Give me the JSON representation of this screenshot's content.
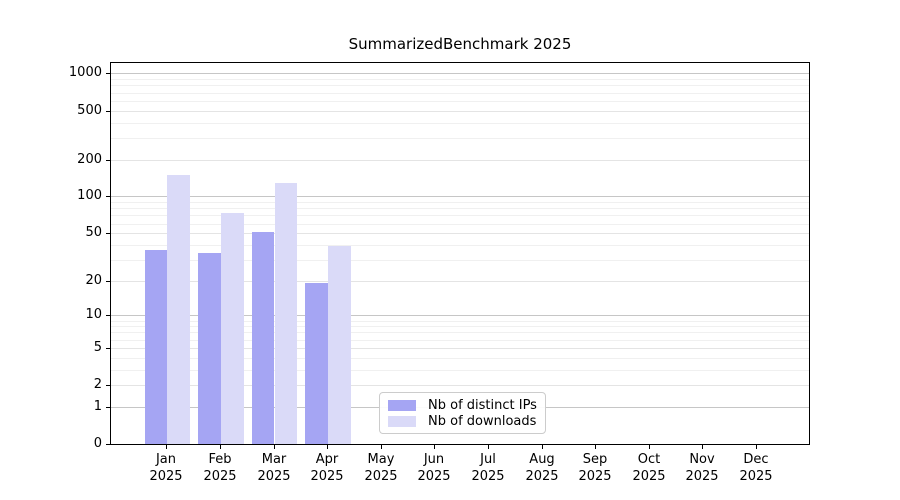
{
  "chart_data": {
    "type": "bar",
    "title": "SummarizedBenchmark 2025",
    "year": "2025",
    "categories": [
      "Jan",
      "Feb",
      "Mar",
      "Apr",
      "May",
      "Jun",
      "Jul",
      "Aug",
      "Sep",
      "Oct",
      "Nov",
      "Dec"
    ],
    "series": [
      {
        "name": "Nb of distinct IPs",
        "color": "#a5a5f3",
        "values": [
          36,
          34,
          51,
          19,
          null,
          null,
          null,
          null,
          null,
          null,
          null,
          null
        ]
      },
      {
        "name": "Nb of downloads",
        "color": "#dadaf8",
        "values": [
          150,
          73,
          130,
          39,
          null,
          null,
          null,
          null,
          null,
          null,
          null,
          null
        ]
      }
    ],
    "y_ticks": [
      0,
      1,
      2,
      5,
      10,
      20,
      50,
      100,
      200,
      500,
      1000
    ],
    "ylim": [
      0,
      1000
    ],
    "scale": "log1p",
    "grid": "on",
    "legend_position": "lower-center",
    "colors": {
      "major_gridline": "#c6c6c6",
      "labeled_minor_gridline": "#e4e4e4",
      "minor_gridline": "#f0f0f0",
      "axis": "#000000",
      "legend_border": "#cccccc"
    }
  }
}
